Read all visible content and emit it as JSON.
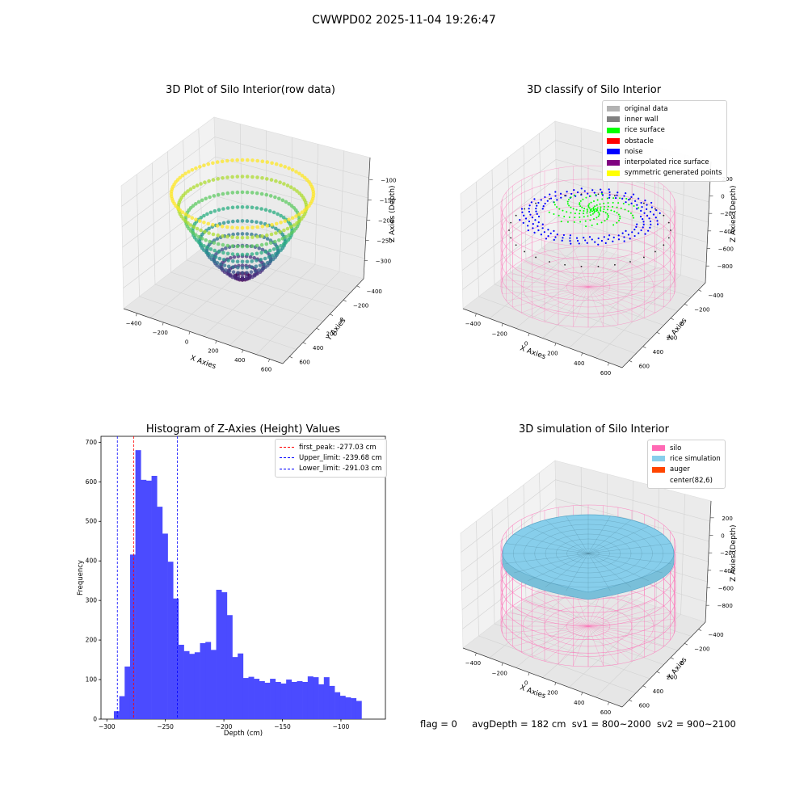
{
  "figure": {
    "suptitle": "CWWPD02 2025-11-04 19:26:47",
    "status": {
      "flag": "flag = 0",
      "avg_depth": "avgDepth = 182 cm",
      "sv1": "sv1 = 800~2000",
      "sv2": "sv2 = 900~2100"
    }
  },
  "chart_data": [
    {
      "type": "scatter",
      "projection": "3d",
      "title": "3D Plot of Silo Interior(row data)",
      "xlabel": "X Axies",
      "ylabel": "Y Axies",
      "zlabel": "Z Axies (Depth)",
      "x_ticks": [
        "−400",
        "−200",
        "0",
        "200",
        "400",
        "600"
      ],
      "y_ticks": [
        "−400",
        "−200",
        "0",
        "200",
        "400",
        "600"
      ],
      "z_ticks": [
        "−300",
        "−250",
        "−200",
        "−150",
        "−100"
      ],
      "zlim": [
        -300,
        -80
      ],
      "colormap": "viridis",
      "description_points": "rim points near depth −85 cm, bowl bottom near −300 cm"
    },
    {
      "type": "scatter",
      "projection": "3d",
      "title": "3D classify of Silo Interior",
      "xlabel": "X Axies",
      "ylabel": "Y Axies",
      "zlabel": "Z Axies (Depth)",
      "x_ticks": [
        "−400",
        "−200",
        "0",
        "200",
        "400",
        "600"
      ],
      "y_ticks": [
        "−400",
        "−200",
        "0",
        "200",
        "400",
        "600"
      ],
      "z_ticks": [
        "−800",
        "−600",
        "−400",
        "−200",
        "0",
        "200"
      ],
      "legend_position": "top-right",
      "legend": [
        {
          "label": "original data",
          "color": "#b3b3b3"
        },
        {
          "label": "inner wall",
          "color": "#808080"
        },
        {
          "label": "rice surface",
          "color": "#00ff00"
        },
        {
          "label": "obstacle",
          "color": "#ff0000"
        },
        {
          "label": "noise",
          "color": "#0000ff"
        },
        {
          "label": "interpolated rice surface",
          "color": "#800080"
        },
        {
          "label": "symmetric generated points",
          "color": "#ffff00"
        }
      ],
      "wireframe_color": "#ff69b4"
    },
    {
      "type": "bar",
      "title": "Histogram of Z-Axies (Height) Values",
      "xlabel": "Depth (cm)",
      "ylabel": "Frequency",
      "xlim": [
        -305,
        -62
      ],
      "ylim": [
        0,
        715
      ],
      "x_ticks": [
        -300,
        -250,
        -200,
        -150,
        -100
      ],
      "x_tick_labels": [
        "−300",
        "−250",
        "−200",
        "−150",
        "−100"
      ],
      "y_ticks": [
        0,
        100,
        200,
        300,
        400,
        500,
        600,
        700
      ],
      "bar_color": "#4b4bff",
      "bin_start": -294,
      "bin_width": 4.6,
      "values": [
        20,
        58,
        133,
        416,
        680,
        605,
        603,
        615,
        537,
        469,
        398,
        305,
        188,
        172,
        165,
        169,
        192,
        195,
        175,
        327,
        321,
        263,
        157,
        166,
        104,
        107,
        102,
        96,
        92,
        102,
        94,
        90,
        100,
        94,
        96,
        94,
        108,
        106,
        88,
        106,
        84,
        68,
        59,
        55,
        53,
        46
      ],
      "vlines": [
        {
          "label": "first_peak: -277.03 cm",
          "x": -277.03,
          "color": "#ff0000"
        },
        {
          "label": "Upper_limit: -239.68 cm",
          "x": -239.68,
          "color": "#0000ff"
        },
        {
          "label": "Lower_limit: -291.03 cm",
          "x": -291.03,
          "color": "#0000ff"
        }
      ],
      "legend_position": "top-right"
    },
    {
      "type": "surface",
      "projection": "3d",
      "title": "3D simulation of Silo Interior",
      "xlabel": "X Axies",
      "ylabel": "Y Axies",
      "zlabel": "Z Axies (Depth)",
      "x_ticks": [
        "−400",
        "−200",
        "0",
        "200",
        "400",
        "600"
      ],
      "y_ticks": [
        "−400",
        "−200",
        "0",
        "200",
        "400",
        "600"
      ],
      "z_ticks": [
        "−800",
        "−600",
        "−400",
        "−200",
        "0",
        "200"
      ],
      "legend_position": "top-right",
      "legend": [
        {
          "label": "silo",
          "color": "#ff69b4"
        },
        {
          "label": "rice simulation",
          "color": "#87ceeb"
        },
        {
          "label": "auger",
          "color": "#ff4500"
        },
        {
          "label": "center(82,6)",
          "color": ""
        }
      ]
    }
  ]
}
